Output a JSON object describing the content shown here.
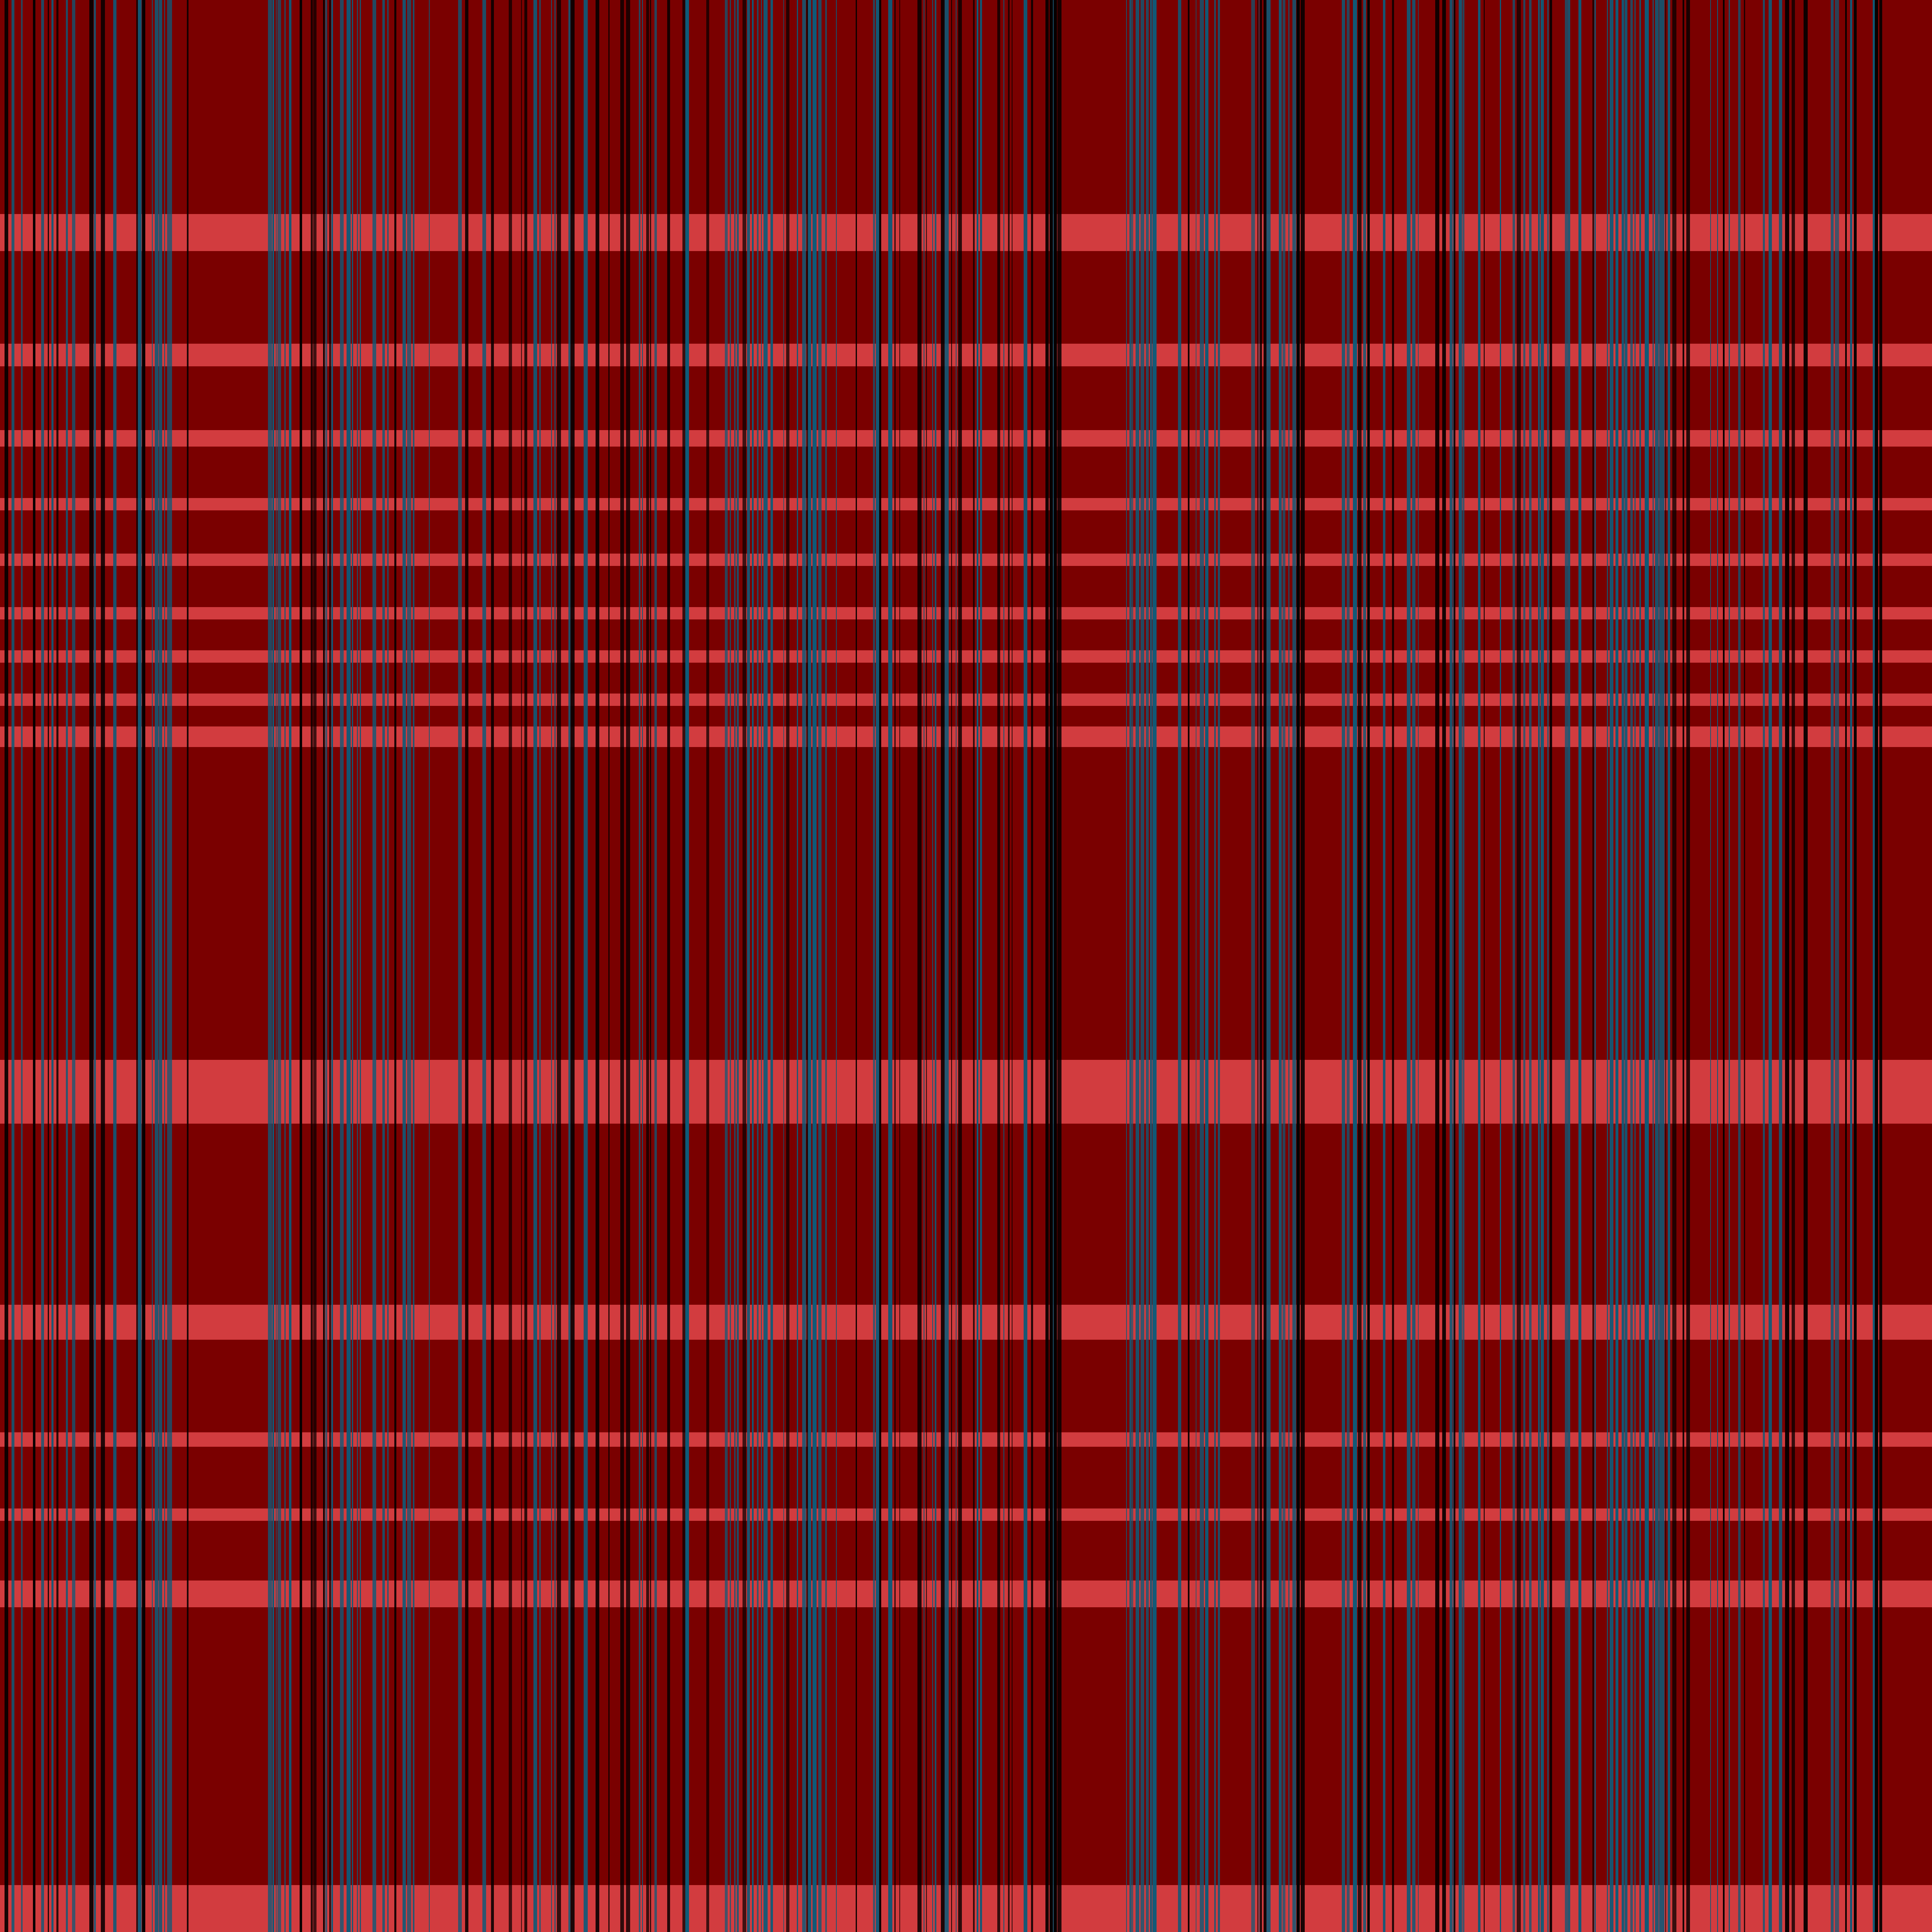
{
  "palette": {
    "base_red": "#7a0000",
    "bright_red": "#e2474a",
    "teal": "#0e5a78",
    "black": "#060000"
  },
  "image_description": {
    "type": "abstract-striped-pattern",
    "text": ""
  }
}
